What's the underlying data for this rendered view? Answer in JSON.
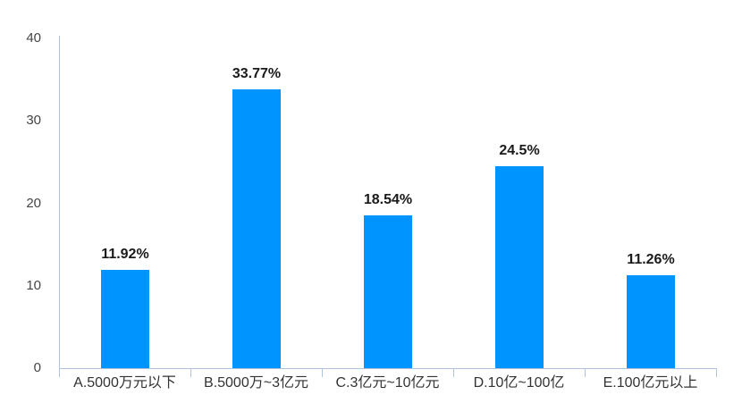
{
  "chart_data": {
    "type": "bar",
    "title": "",
    "xlabel": "",
    "ylabel": "",
    "categories": [
      "A.5000万元以下",
      "B.5000万~3亿元",
      "C.3亿元~10亿元",
      "D.10亿~100亿",
      "E.100亿元以上"
    ],
    "values": [
      11.92,
      33.77,
      18.54,
      24.5,
      11.26
    ],
    "value_labels": [
      "11.92%",
      "33.77%",
      "18.54%",
      "24.5%",
      "11.26%"
    ],
    "y_ticks": [
      0,
      10,
      20,
      30,
      40
    ],
    "y_tick_labels": [
      "0",
      "10",
      "20",
      "30",
      "40"
    ],
    "ylim": [
      0,
      40
    ],
    "grid": false,
    "legend_position": "none",
    "colors": {
      "bar": "#0094fe",
      "axis": "#b0c4de",
      "value_label_text": "#1a1a1a",
      "y_tick_text": "#444444",
      "category_text": "#333333",
      "background": "#ffffff"
    }
  }
}
